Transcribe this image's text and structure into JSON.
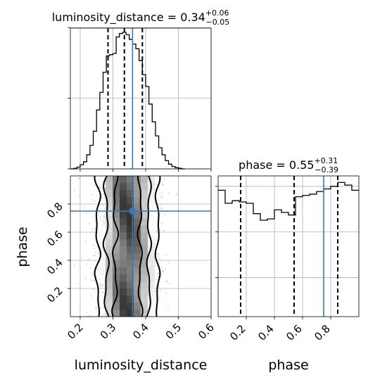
{
  "chart_data": [
    {
      "type": "histogram",
      "panel": "luminosity_distance marginal",
      "title_prefix": "luminosity_distance = ",
      "median": "0.34",
      "err_plus": "+0.06",
      "err_minus": "−0.05",
      "xlim": [
        0.17,
        0.6
      ],
      "quantiles": [
        0.285,
        0.335,
        0.39
      ],
      "truth": 0.36,
      "bin_edges": [
        0.17,
        0.18,
        0.19,
        0.2,
        0.21,
        0.22,
        0.23,
        0.24,
        0.25,
        0.26,
        0.27,
        0.28,
        0.29,
        0.3,
        0.31,
        0.32,
        0.33,
        0.34,
        0.35,
        0.36,
        0.37,
        0.38,
        0.39,
        0.4,
        0.41,
        0.42,
        0.43,
        0.44,
        0.45,
        0.46,
        0.47,
        0.48,
        0.49,
        0.5,
        0.51,
        0.52
      ],
      "counts": [
        0,
        0.4,
        1.5,
        3.5,
        6,
        12,
        20,
        32,
        50,
        65,
        82,
        96,
        97,
        98,
        112,
        115,
        116,
        114,
        110,
        106,
        102,
        92,
        80,
        70,
        55,
        40,
        28,
        18,
        12,
        7,
        4,
        2,
        1,
        0.5,
        0
      ],
      "xticks": [
        0.2,
        0.3,
        0.4,
        0.5,
        0.6
      ]
    },
    {
      "type": "histogram",
      "panel": "phase marginal",
      "title_prefix": "phase = ",
      "median": "0.55",
      "err_plus": "+0.31",
      "err_minus": "−0.39",
      "xlim": [
        0,
        1
      ],
      "quantiles": [
        0.16,
        0.54,
        0.85
      ],
      "truth": 0.75,
      "bin_edges": [
        0,
        0.05,
        0.1,
        0.15,
        0.2,
        0.25,
        0.3,
        0.35,
        0.4,
        0.45,
        0.5,
        0.55,
        0.6,
        0.65,
        0.7,
        0.75,
        0.8,
        0.85,
        0.9,
        0.95,
        1.0
      ],
      "counts": [
        97,
        87,
        89,
        88,
        87,
        79,
        74,
        75,
        82,
        80,
        78,
        92,
        93,
        94,
        96,
        98,
        100,
        103,
        101,
        97
      ],
      "xlabel": "phase",
      "xticks": [
        0.2,
        0.4,
        0.6,
        0.8
      ]
    },
    {
      "type": "scatter",
      "panel": "phase vs luminosity_distance joint",
      "xlabel": "luminosity_distance",
      "ylabel": "phase",
      "xlim": [
        0.17,
        0.6
      ],
      "ylim": [
        0,
        1
      ],
      "truth": [
        0.36,
        0.75
      ],
      "xticks": [
        0.2,
        0.3,
        0.4,
        0.5,
        0.6
      ],
      "yticks": [
        0.2,
        0.4,
        0.6,
        0.8
      ]
    }
  ]
}
